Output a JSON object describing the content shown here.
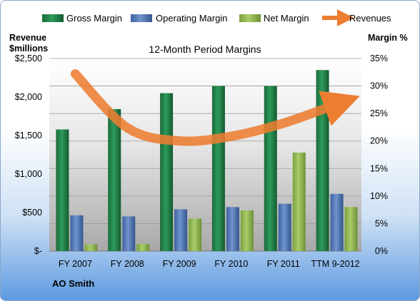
{
  "chart_data": {
    "type": "bar",
    "title": "12-Month Period Margins",
    "company": "AO Smith",
    "categories": [
      "FY 2007",
      "FY 2008",
      "FY 2009",
      "FY 2010",
      "FY 2011",
      "TTM 9-2012"
    ],
    "y_left": {
      "label_line1": "Revenue",
      "label_line2": "$millions",
      "range": [
        0,
        2500
      ],
      "ticks": [
        0,
        500,
        1000,
        1500,
        2000,
        2500
      ],
      "tick_labels": [
        "$-",
        "$500",
        "$1,000",
        "$1,500",
        "$2,000",
        "$2,500"
      ]
    },
    "y_right": {
      "label": "Margin %",
      "range": [
        0,
        35
      ],
      "ticks": [
        0,
        5,
        10,
        15,
        20,
        25,
        30,
        35
      ],
      "tick_labels": [
        "0%",
        "5%",
        "10%",
        "15%",
        "20%",
        "25%",
        "30%",
        "35%"
      ]
    },
    "series": [
      {
        "name": "Gross Margin",
        "color": "#1f7a45",
        "values": [
          22.1,
          25.8,
          28.7,
          30.0,
          30.0,
          32.9
        ],
        "axis": "right"
      },
      {
        "name": "Operating Margin",
        "color": "#4a6fa8",
        "values": [
          6.5,
          6.3,
          7.6,
          8.0,
          8.6,
          10.4
        ],
        "axis": "right"
      },
      {
        "name": "Net Margin",
        "color": "#8db34e",
        "values": [
          1.2,
          1.3,
          5.9,
          7.4,
          17.9,
          8.0
        ],
        "axis": "right"
      }
    ],
    "line_series": {
      "name": "Revenues",
      "color": "#ed7d31",
      "values": [
        2300,
        1600,
        1430,
        1490,
        1660,
        1900
      ],
      "axis": "left"
    },
    "legend": {
      "position": "top"
    },
    "grid": true
  }
}
